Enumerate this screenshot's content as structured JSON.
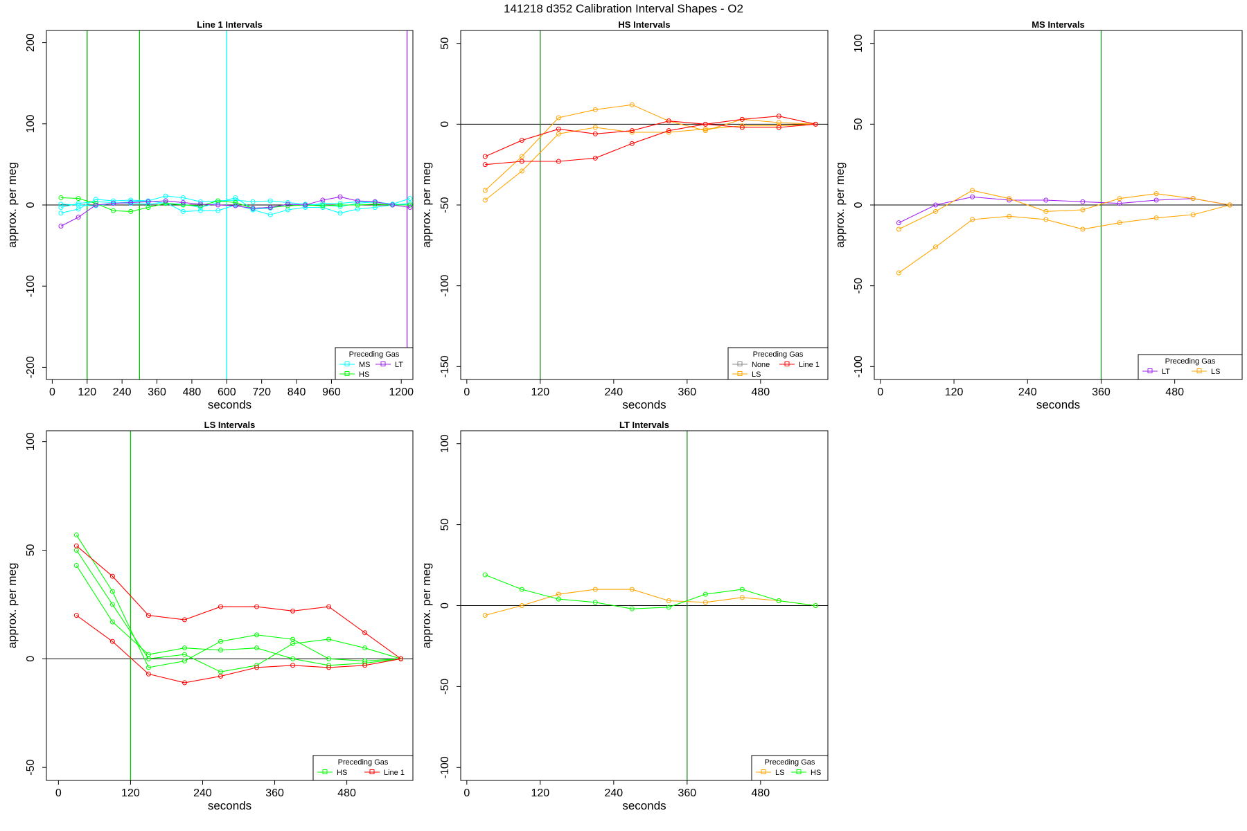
{
  "figure": {
    "title": "141218   d352   Calibration Interval Shapes - O2"
  },
  "chart_data": [
    {
      "type": "line",
      "title": "Line 1 Intervals",
      "xlabel": "seconds",
      "ylabel": "approx. per meg",
      "xlim": [
        -20,
        1240
      ],
      "ylim": [
        -215,
        215
      ],
      "xticks": [
        0,
        120,
        240,
        360,
        480,
        600,
        720,
        840,
        960,
        1200
      ],
      "yticks": [
        -200,
        -100,
        0,
        100,
        200
      ],
      "vlines": [
        {
          "x": 120,
          "color": "#00aa00"
        },
        {
          "x": 300,
          "color": "#00cc00"
        },
        {
          "x": 600,
          "color": "#00ffff"
        },
        {
          "x": 1220,
          "color": "#a020f0"
        }
      ],
      "legend": {
        "title": "Preceding Gas",
        "position": "bottom-right",
        "entries": [
          {
            "label": "MS",
            "color": "#00ffff"
          },
          {
            "label": "LT",
            "color": "#a020f0"
          },
          {
            "label": "HS",
            "color": "#00ff00"
          }
        ]
      },
      "series": [
        {
          "color": "#00ffff",
          "x": [
            30,
            90,
            150,
            210,
            270,
            330,
            390,
            450,
            510,
            570,
            630,
            690,
            750,
            810,
            870,
            930,
            990,
            1050,
            1110,
            1170,
            1230
          ],
          "y": [
            -10,
            -5,
            7,
            5,
            6,
            5,
            11,
            9,
            4,
            5,
            6,
            4,
            5,
            3,
            1,
            0,
            -2,
            2,
            4,
            1,
            8
          ]
        },
        {
          "color": "#00ffff",
          "x": [
            30,
            90,
            150,
            210,
            270,
            330,
            390,
            450,
            510,
            570,
            630,
            690,
            750,
            810,
            870,
            930,
            990,
            1050,
            1110,
            1170,
            1230
          ],
          "y": [
            -3,
            2,
            4,
            3,
            2,
            1,
            3,
            -8,
            -7,
            -7,
            0,
            -6,
            -12,
            -6,
            -3,
            -3,
            -10,
            -5,
            -3,
            0,
            2
          ]
        },
        {
          "color": "#00ffff",
          "x": [
            30,
            90,
            150,
            210,
            270,
            330,
            390,
            450,
            510,
            570,
            630,
            690,
            750,
            810,
            870,
            930,
            990,
            1050,
            1110,
            1170,
            1230
          ],
          "y": [
            1,
            0,
            -1,
            2,
            4,
            5,
            2,
            1,
            -3,
            3,
            9,
            -5,
            -4,
            1,
            -1,
            2,
            2,
            4,
            3,
            1,
            0
          ]
        },
        {
          "color": "#00ff00",
          "x": [
            30,
            90,
            150,
            210,
            270,
            330,
            390,
            450,
            510,
            570,
            630,
            690,
            750,
            810,
            870,
            930,
            990,
            1050,
            1110,
            1170,
            1230
          ],
          "y": [
            9,
            8,
            2,
            -7,
            -8,
            -3,
            2,
            0,
            -1,
            5,
            3,
            -4,
            -3,
            -1,
            0,
            -1,
            0,
            0,
            1,
            0,
            0
          ]
        },
        {
          "color": "#a020f0",
          "x": [
            30,
            90,
            150,
            210,
            270,
            330,
            390,
            450,
            510,
            570,
            630,
            690,
            750,
            810,
            870,
            930,
            990,
            1050,
            1110,
            1170,
            1230
          ],
          "y": [
            -26,
            -15,
            0,
            2,
            3,
            4,
            5,
            3,
            1,
            0,
            -1,
            -4,
            -3,
            1,
            0,
            6,
            10,
            5,
            4,
            0,
            -3
          ]
        }
      ]
    },
    {
      "type": "line",
      "title": "HS Intervals",
      "xlabel": "seconds",
      "ylabel": "approx. per meg",
      "xlim": [
        -10,
        590
      ],
      "ylim": [
        -158,
        58
      ],
      "xticks": [
        0,
        120,
        240,
        360,
        480
      ],
      "yticks": [
        -150,
        -100,
        -50,
        0,
        50
      ],
      "vlines": [
        {
          "x": 120,
          "color": "#228b22"
        }
      ],
      "legend": {
        "title": "Preceding Gas",
        "position": "bottom-right",
        "entries": [
          {
            "label": "None",
            "color": "#888888"
          },
          {
            "label": "Line 1",
            "color": "#ff0000"
          },
          {
            "label": "LS",
            "color": "#ffa500"
          }
        ]
      },
      "series": [
        {
          "color": "#ffa500",
          "x": [
            30,
            90,
            150,
            210,
            270,
            330,
            390,
            450,
            510,
            570
          ],
          "y": [
            -41,
            -20,
            4,
            9,
            12,
            2,
            -4,
            3,
            1,
            0
          ]
        },
        {
          "color": "#ffa500",
          "x": [
            30,
            90,
            150,
            210,
            270,
            330,
            390,
            450,
            510,
            570
          ],
          "y": [
            -47,
            -29,
            -6,
            -2,
            -5,
            -5,
            -3,
            -1,
            -1,
            0
          ]
        },
        {
          "color": "#ff0000",
          "x": [
            30,
            90,
            150,
            210,
            270,
            330,
            390,
            450,
            510,
            570
          ],
          "y": [
            -20,
            -10,
            -3,
            -6,
            -4,
            2,
            0,
            3,
            5,
            0
          ]
        },
        {
          "color": "#ff0000",
          "x": [
            30,
            90,
            150,
            210,
            270,
            330,
            390,
            450,
            510,
            570
          ],
          "y": [
            -25,
            -23,
            -23,
            -21,
            -12,
            -4,
            0,
            -2,
            -2,
            0
          ]
        }
      ]
    },
    {
      "type": "line",
      "title": "MS Intervals",
      "xlabel": "seconds",
      "ylabel": "approx. per meg",
      "xlim": [
        -10,
        590
      ],
      "ylim": [
        -108,
        108
      ],
      "xticks": [
        0,
        120,
        240,
        360,
        480
      ],
      "yticks": [
        -100,
        -50,
        0,
        50,
        100
      ],
      "vlines": [
        {
          "x": 360,
          "color": "#228b22"
        }
      ],
      "legend": {
        "title": "Preceding Gas",
        "position": "bottom-right",
        "entries": [
          {
            "label": "LT",
            "color": "#a020f0"
          },
          {
            "label": "LS",
            "color": "#ffa500"
          }
        ]
      },
      "series": [
        {
          "color": "#a020f0",
          "x": [
            30,
            90,
            150,
            210,
            270,
            330,
            390,
            450,
            510,
            570
          ],
          "y": [
            -11,
            0,
            5,
            3,
            3,
            2,
            1,
            3,
            4,
            0
          ]
        },
        {
          "color": "#ffa500",
          "x": [
            30,
            90,
            150,
            210,
            270,
            330,
            390,
            450,
            510,
            570
          ],
          "y": [
            -15,
            -4,
            9,
            4,
            -4,
            -3,
            4,
            7,
            4,
            0
          ]
        },
        {
          "color": "#ffa500",
          "x": [
            30,
            90,
            150,
            210,
            270,
            330,
            390,
            450,
            510,
            570
          ],
          "y": [
            -42,
            -26,
            -9,
            -7,
            -9,
            -15,
            -11,
            -8,
            -6,
            0
          ]
        }
      ]
    },
    {
      "type": "line",
      "title": "LS Intervals",
      "xlabel": "seconds",
      "ylabel": "approx. per meg",
      "xlim": [
        -20,
        590
      ],
      "ylim": [
        -56,
        105
      ],
      "xticks": [
        0,
        120,
        240,
        360,
        480
      ],
      "yticks": [
        -50,
        0,
        50,
        100
      ],
      "vlines": [
        {
          "x": 120,
          "color": "#00cc00"
        }
      ],
      "legend": {
        "title": "Preceding Gas",
        "position": "bottom-right",
        "entries": [
          {
            "label": "HS",
            "color": "#00ff00"
          },
          {
            "label": "Line 1",
            "color": "#ff0000"
          }
        ]
      },
      "series": [
        {
          "color": "#00ff00",
          "x": [
            30,
            90,
            150,
            210,
            270,
            330,
            390,
            450,
            510,
            570
          ],
          "y": [
            57,
            31,
            -4,
            -1,
            8,
            11,
            9,
            0,
            -1,
            0
          ]
        },
        {
          "color": "#00ff00",
          "x": [
            30,
            90,
            150,
            210,
            270,
            330,
            390,
            450,
            510,
            570
          ],
          "y": [
            50,
            25,
            0,
            2,
            -6,
            -3,
            7,
            9,
            5,
            0
          ]
        },
        {
          "color": "#00ff00",
          "x": [
            30,
            90,
            150,
            210,
            270,
            330,
            390,
            450,
            510,
            570
          ],
          "y": [
            43,
            17,
            2,
            5,
            4,
            5,
            0,
            -3,
            -2,
            0
          ]
        },
        {
          "color": "#ff0000",
          "x": [
            30,
            90,
            150,
            210,
            270,
            330,
            390,
            450,
            510,
            570
          ],
          "y": [
            52,
            38,
            20,
            18,
            24,
            24,
            22,
            24,
            12,
            0
          ]
        },
        {
          "color": "#ff0000",
          "x": [
            30,
            90,
            150,
            210,
            270,
            330,
            390,
            450,
            510,
            570
          ],
          "y": [
            20,
            8,
            -7,
            -11,
            -8,
            -4,
            -3,
            -4,
            -3,
            0
          ]
        }
      ]
    },
    {
      "type": "line",
      "title": "LT Intervals",
      "xlabel": "seconds",
      "ylabel": "approx. per meg",
      "xlim": [
        -10,
        590
      ],
      "ylim": [
        -108,
        108
      ],
      "xticks": [
        0,
        120,
        240,
        360,
        480
      ],
      "yticks": [
        -100,
        -50,
        0,
        50,
        100
      ],
      "vlines": [
        {
          "x": 360,
          "color": "#228b22"
        }
      ],
      "legend": {
        "title": "Preceding Gas",
        "position": "bottom-right",
        "entries": [
          {
            "label": "LS",
            "color": "#ffa500"
          },
          {
            "label": "HS",
            "color": "#00ff00"
          }
        ]
      },
      "series": [
        {
          "color": "#ffa500",
          "x": [
            30,
            90,
            150,
            210,
            270,
            330,
            390,
            450,
            510,
            570
          ],
          "y": [
            -6,
            0,
            7,
            10,
            10,
            3,
            2,
            5,
            3,
            0
          ]
        },
        {
          "color": "#00ff00",
          "x": [
            30,
            90,
            150,
            210,
            270,
            330,
            390,
            450,
            510,
            570
          ],
          "y": [
            19,
            10,
            4,
            2,
            -2,
            -1,
            7,
            10,
            3,
            0
          ]
        }
      ]
    }
  ]
}
